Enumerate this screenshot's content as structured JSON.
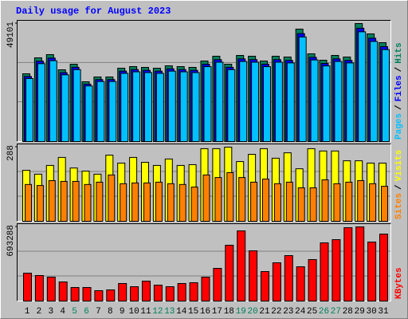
{
  "chart_data": [
    {
      "type": "bar",
      "title": "Daily usage for August 2023",
      "ylim": [
        0,
        49101
      ],
      "yticks": [
        49101
      ],
      "legend_separator": "/",
      "series": [
        {
          "name": "Pages",
          "color": "#00c0ff",
          "values": [
            26230,
            32400,
            33640,
            27770,
            29930,
            23140,
            24990,
            24990,
            28380,
            29010,
            28700,
            28380,
            29310,
            29010,
            28700,
            31160,
            33020,
            29930,
            33320,
            33020,
            31160,
            33020,
            32710,
            43510,
            33950,
            31470,
            33320,
            32710,
            45660,
            41650,
            38260
          ]
        },
        {
          "name": "Files",
          "color": "#0000ff",
          "values": [
            27070,
            33450,
            34720,
            28670,
            30890,
            23880,
            25800,
            25800,
            29300,
            29940,
            29630,
            29300,
            30260,
            29940,
            29630,
            32170,
            34080,
            30890,
            34400,
            34080,
            32170,
            34080,
            33760,
            44910,
            35040,
            32490,
            34400,
            33760,
            47140,
            43000,
            39490
          ]
        },
        {
          "name": "Hits",
          "color": "#00805c",
          "values": [
            28200,
            34840,
            36170,
            29860,
            32180,
            24880,
            26870,
            26870,
            30520,
            31190,
            30860,
            30520,
            31520,
            31190,
            30860,
            33510,
            35500,
            32180,
            35830,
            35500,
            33510,
            35500,
            35170,
            46780,
            36500,
            33840,
            35830,
            35170,
            49101,
            44790,
            41140
          ]
        }
      ]
    },
    {
      "type": "bar",
      "ylim": [
        0,
        288
      ],
      "yticks": [
        288
      ],
      "legend_separator": "/",
      "series": [
        {
          "name": "Sites",
          "color": "#ff8000",
          "values": [
            143,
            139,
            158,
            155,
            155,
            143,
            152,
            180,
            146,
            149,
            149,
            152,
            146,
            143,
            133,
            180,
            170,
            189,
            170,
            152,
            164,
            146,
            152,
            130,
            130,
            161,
            146,
            152,
            158,
            146,
            136
          ]
        },
        {
          "name": "Visits",
          "color": "#ffff00",
          "values": [
            198,
            183,
            217,
            248,
            207,
            195,
            183,
            257,
            226,
            248,
            229,
            217,
            242,
            217,
            220,
            282,
            282,
            288,
            232,
            260,
            282,
            245,
            266,
            204,
            282,
            273,
            273,
            235,
            235,
            226,
            226
          ]
        }
      ]
    },
    {
      "type": "bar",
      "ylim": [
        0,
        693288
      ],
      "yticks": [
        693288
      ],
      "categories": [
        "1",
        "2",
        "3",
        "4",
        "5",
        "6",
        "7",
        "8",
        "9",
        "10",
        "11",
        "12",
        "13",
        "14",
        "15",
        "16",
        "17",
        "18",
        "19",
        "20",
        "21",
        "22",
        "23",
        "24",
        "25",
        "26",
        "27",
        "28",
        "29",
        "30",
        "31"
      ],
      "category_colors": [
        "#000000",
        "#000000",
        "#000000",
        "#000000",
        "#00805c",
        "#00805c",
        "#000000",
        "#000000",
        "#000000",
        "#000000",
        "#000000",
        "#00805c",
        "#00805c",
        "#000000",
        "#000000",
        "#000000",
        "#000000",
        "#000000",
        "#00805c",
        "#00805c",
        "#000000",
        "#000000",
        "#000000",
        "#000000",
        "#000000",
        "#00805c",
        "#00805c",
        "#000000",
        "#000000",
        "#000000",
        "#000000"
      ],
      "series": [
        {
          "name": "KBytes",
          "color": "#ff0000",
          "values": [
            260900,
            238600,
            223700,
            178900,
            126700,
            126700,
            96900,
            104400,
            164000,
            134200,
            186400,
            149100,
            134200,
            164000,
            171500,
            223700,
            305700,
            521900,
            656000,
            469700,
            275800,
            357800,
            424900,
            320600,
            387700,
            544200,
            574000,
            685900,
            693288,
            551700,
            626200
          ]
        }
      ]
    }
  ]
}
